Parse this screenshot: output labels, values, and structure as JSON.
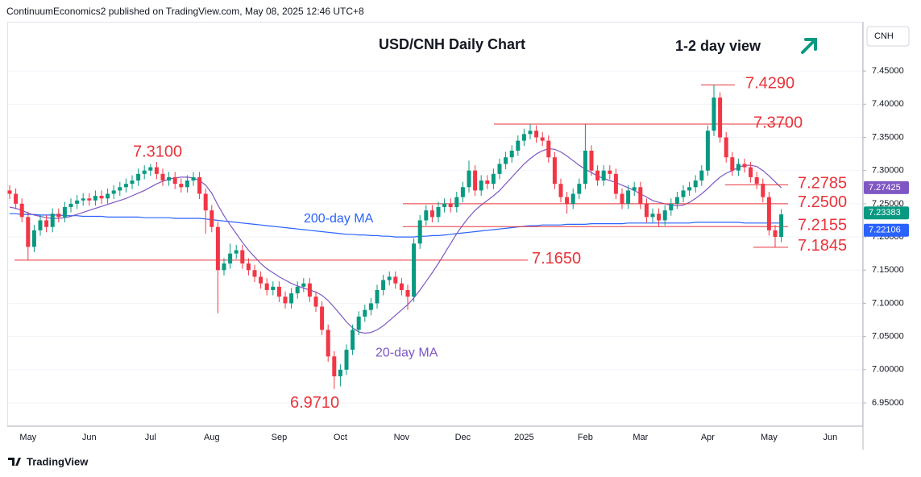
{
  "header": "ContinuumEconomics2 published on TradingView.com, May 08, 2025 12:46 UTC+8",
  "footer": "TradingView",
  "chart_data": {
    "type": "candlestick",
    "title": "USD/CNH Daily Chart",
    "subtitle": "1-2 day view",
    "currency": "CNH",
    "up_color": "#089981",
    "down_color": "#f23645",
    "categories": [
      null,
      null,
      null,
      "May",
      null,
      null,
      null,
      null,
      null,
      null,
      null,
      null,
      null,
      "Jun",
      null,
      null,
      null,
      null,
      null,
      null,
      null,
      null,
      null,
      "Jul",
      null,
      null,
      null,
      null,
      null,
      null,
      null,
      null,
      null,
      "Aug",
      null,
      null,
      null,
      null,
      null,
      null,
      null,
      null,
      null,
      null,
      "Sep",
      null,
      null,
      null,
      null,
      null,
      null,
      null,
      null,
      null,
      "Oct",
      null,
      null,
      null,
      null,
      null,
      null,
      null,
      null,
      null,
      "Nov",
      null,
      null,
      null,
      null,
      null,
      null,
      null,
      null,
      null,
      "Dec",
      null,
      null,
      null,
      null,
      null,
      null,
      null,
      null,
      null,
      "2025",
      null,
      null,
      null,
      null,
      null,
      null,
      null,
      null,
      null,
      "Feb",
      null,
      null,
      null,
      null,
      null,
      null,
      null,
      null,
      "Mar",
      null,
      null,
      null,
      null,
      null,
      null,
      null,
      null,
      null,
      null,
      "Apr",
      null,
      null,
      null,
      null,
      null,
      null,
      null,
      null,
      null,
      "May",
      null,
      null,
      null,
      null,
      null,
      null,
      null,
      null,
      null,
      "Jun"
    ],
    "open": [
      7.27,
      7.265,
      7.25,
      7.23,
      7.185,
      7.21,
      7.225,
      7.215,
      7.235,
      7.23,
      7.245,
      7.25,
      7.255,
      7.258,
      7.255,
      7.262,
      7.258,
      7.265,
      7.27,
      7.275,
      7.28,
      7.285,
      7.295,
      7.3,
      7.305,
      7.295,
      7.285,
      7.29,
      7.28,
      7.275,
      7.285,
      7.29,
      7.265,
      7.24,
      7.215,
      7.15,
      7.16,
      7.175,
      7.18,
      7.16,
      7.15,
      7.14,
      7.13,
      7.12,
      7.125,
      7.11,
      7.1,
      7.115,
      7.125,
      7.13,
      7.11,
      7.095,
      7.06,
      7.02,
      6.99,
      7.0,
      7.03,
      7.06,
      7.08,
      7.09,
      7.1,
      7.12,
      7.135,
      7.14,
      7.13,
      7.12,
      7.11,
      7.19,
      7.225,
      7.24,
      7.23,
      7.245,
      7.25,
      7.245,
      7.26,
      7.275,
      7.3,
      7.27,
      7.285,
      7.28,
      7.295,
      7.31,
      7.32,
      7.33,
      7.345,
      7.355,
      7.36,
      7.35,
      7.345,
      7.32,
      7.28,
      7.26,
      7.25,
      7.265,
      7.28,
      7.33,
      7.3,
      7.285,
      7.3,
      7.295,
      7.265,
      7.25,
      7.27,
      7.275,
      7.25,
      7.23,
      7.235,
      7.225,
      7.24,
      7.25,
      7.26,
      7.27,
      7.275,
      7.285,
      7.3,
      7.36,
      7.41,
      7.35,
      7.32,
      7.3,
      7.31,
      7.305,
      7.29,
      7.28,
      7.26,
      7.21,
      7.2,
      null,
      null,
      null,
      null,
      null,
      null,
      null,
      null
    ],
    "high": [
      7.278,
      7.273,
      7.258,
      7.238,
      7.218,
      7.233,
      7.233,
      7.243,
      7.243,
      7.253,
      7.258,
      7.263,
      7.266,
      7.266,
      7.27,
      7.27,
      7.273,
      7.278,
      7.283,
      7.288,
      7.293,
      7.303,
      7.308,
      7.31,
      7.313,
      7.303,
      7.298,
      7.298,
      7.288,
      7.293,
      7.298,
      7.298,
      7.273,
      7.248,
      7.223,
      7.168,
      7.19,
      7.188,
      7.188,
      7.168,
      7.158,
      7.148,
      7.138,
      7.133,
      7.133,
      7.118,
      7.123,
      7.133,
      7.138,
      7.138,
      7.118,
      7.103,
      7.068,
      7.028,
      7.008,
      7.038,
      7.068,
      7.088,
      7.098,
      7.108,
      7.128,
      7.143,
      7.148,
      7.148,
      7.138,
      7.128,
      7.198,
      7.233,
      7.248,
      7.248,
      7.253,
      7.258,
      7.258,
      7.268,
      7.283,
      7.315,
      7.308,
      7.293,
      7.293,
      7.303,
      7.318,
      7.328,
      7.338,
      7.353,
      7.363,
      7.37,
      7.368,
      7.358,
      7.353,
      7.328,
      7.288,
      7.268,
      7.273,
      7.288,
      7.37,
      7.338,
      7.308,
      7.308,
      7.308,
      7.303,
      7.273,
      7.278,
      7.283,
      7.283,
      7.258,
      7.243,
      7.243,
      7.248,
      7.258,
      7.268,
      7.278,
      7.283,
      7.293,
      7.308,
      7.368,
      7.429,
      7.418,
      7.358,
      7.328,
      7.318,
      7.318,
      7.313,
      7.298,
      7.288,
      7.268,
      7.218,
      7.242,
      null,
      null,
      null,
      null,
      null,
      null,
      null,
      null
    ],
    "low": [
      7.257,
      7.242,
      7.222,
      7.165,
      7.177,
      7.202,
      7.207,
      7.207,
      7.222,
      7.222,
      7.237,
      7.242,
      7.247,
      7.247,
      7.247,
      7.25,
      7.25,
      7.257,
      7.262,
      7.267,
      7.272,
      7.277,
      7.287,
      7.292,
      7.287,
      7.277,
      7.277,
      7.272,
      7.267,
      7.267,
      7.277,
      7.257,
      7.205,
      7.207,
      7.085,
      7.142,
      7.152,
      7.167,
      7.152,
      7.142,
      7.132,
      7.122,
      7.112,
      7.112,
      7.102,
      7.092,
      7.092,
      7.107,
      7.117,
      7.102,
      7.087,
      7.052,
      7.012,
      6.971,
      6.975,
      6.992,
      7.022,
      7.052,
      7.072,
      7.082,
      7.092,
      7.112,
      7.127,
      7.122,
      7.112,
      7.09,
      7.102,
      7.182,
      7.217,
      7.222,
      7.222,
      7.237,
      7.237,
      7.237,
      7.252,
      7.267,
      7.262,
      7.262,
      7.272,
      7.272,
      7.287,
      7.302,
      7.312,
      7.322,
      7.337,
      7.347,
      7.342,
      7.337,
      7.312,
      7.272,
      7.252,
      7.235,
      7.242,
      7.257,
      7.272,
      7.292,
      7.277,
      7.277,
      7.287,
      7.257,
      7.242,
      7.242,
      7.262,
      7.242,
      7.222,
      7.222,
      7.215,
      7.217,
      7.232,
      7.242,
      7.252,
      7.262,
      7.267,
      7.277,
      7.292,
      7.352,
      7.342,
      7.312,
      7.292,
      7.292,
      7.297,
      7.282,
      7.272,
      7.252,
      7.202,
      7.1845,
      7.192,
      null,
      null,
      null,
      null,
      null,
      null,
      null,
      null
    ],
    "close": [
      7.265,
      7.25,
      7.23,
      7.185,
      7.21,
      7.225,
      7.215,
      7.235,
      7.23,
      7.245,
      7.25,
      7.255,
      7.258,
      7.255,
      7.262,
      7.258,
      7.265,
      7.27,
      7.275,
      7.28,
      7.285,
      7.295,
      7.3,
      7.305,
      7.295,
      7.285,
      7.29,
      7.28,
      7.275,
      7.285,
      7.29,
      7.265,
      7.24,
      7.215,
      7.15,
      7.16,
      7.175,
      7.18,
      7.16,
      7.15,
      7.14,
      7.13,
      7.12,
      7.125,
      7.11,
      7.1,
      7.115,
      7.125,
      7.13,
      7.11,
      7.095,
      7.06,
      7.02,
      6.99,
      7.0,
      7.03,
      7.06,
      7.08,
      7.09,
      7.1,
      7.12,
      7.135,
      7.14,
      7.13,
      7.12,
      7.11,
      7.19,
      7.225,
      7.24,
      7.23,
      7.245,
      7.25,
      7.245,
      7.26,
      7.275,
      7.3,
      7.27,
      7.285,
      7.28,
      7.295,
      7.31,
      7.32,
      7.33,
      7.345,
      7.355,
      7.36,
      7.35,
      7.345,
      7.32,
      7.28,
      7.26,
      7.25,
      7.265,
      7.28,
      7.33,
      7.3,
      7.285,
      7.3,
      7.295,
      7.265,
      7.25,
      7.27,
      7.275,
      7.25,
      7.23,
      7.235,
      7.225,
      7.24,
      7.25,
      7.26,
      7.27,
      7.275,
      7.285,
      7.3,
      7.36,
      7.41,
      7.35,
      7.32,
      7.3,
      7.31,
      7.305,
      7.29,
      7.28,
      7.26,
      7.21,
      7.2,
      7.234,
      null,
      null,
      null,
      null,
      null,
      null,
      null,
      null
    ],
    "series": [
      {
        "name": "200-day MA",
        "color": "#2962ff",
        "values": [
          7.235,
          7.235,
          7.234,
          7.234,
          7.234,
          7.233,
          7.233,
          7.233,
          7.233,
          7.232,
          7.232,
          7.232,
          7.231,
          7.231,
          7.231,
          7.231,
          7.23,
          7.23,
          7.23,
          7.23,
          7.23,
          7.23,
          7.229,
          7.229,
          7.229,
          7.229,
          7.229,
          7.228,
          7.228,
          7.228,
          7.228,
          7.228,
          7.227,
          7.226,
          7.225,
          7.224,
          7.223,
          7.222,
          7.221,
          7.22,
          7.219,
          7.218,
          7.217,
          7.216,
          7.215,
          7.214,
          7.213,
          7.212,
          7.211,
          7.21,
          7.209,
          7.208,
          7.207,
          7.206,
          7.205,
          7.204,
          7.204,
          7.203,
          7.203,
          7.202,
          7.202,
          7.201,
          7.201,
          7.2,
          7.2,
          7.2,
          7.2,
          7.201,
          7.201,
          7.202,
          7.202,
          7.203,
          7.204,
          7.205,
          7.206,
          7.207,
          7.208,
          7.209,
          7.21,
          7.211,
          7.212,
          7.213,
          7.214,
          7.215,
          7.216,
          7.217,
          7.217,
          7.218,
          7.218,
          7.218,
          7.218,
          7.219,
          7.219,
          7.219,
          7.219,
          7.22,
          7.22,
          7.22,
          7.22,
          7.22,
          7.22,
          7.221,
          7.221,
          7.221,
          7.221,
          7.221,
          7.221,
          7.221,
          7.221,
          7.221,
          7.221,
          7.221,
          7.222,
          7.222,
          7.222,
          7.222,
          7.222,
          7.222,
          7.222,
          7.222,
          7.221,
          7.221,
          7.221,
          7.221,
          7.221,
          7.221,
          7.221,
          null,
          null,
          null,
          null,
          null,
          null,
          null,
          null
        ]
      },
      {
        "name": "20-day MA",
        "color": "#7e57c2",
        "values": [
          7.245,
          7.243,
          7.24,
          7.236,
          7.233,
          7.231,
          7.229,
          7.228,
          7.228,
          7.229,
          7.231,
          7.234,
          7.237,
          7.24,
          7.243,
          7.246,
          7.249,
          7.252,
          7.255,
          7.258,
          7.262,
          7.266,
          7.27,
          7.275,
          7.28,
          7.284,
          7.287,
          7.289,
          7.29,
          7.29,
          7.289,
          7.285,
          7.278,
          7.266,
          7.248,
          7.232,
          7.218,
          7.205,
          7.192,
          7.18,
          7.17,
          7.16,
          7.152,
          7.146,
          7.14,
          7.135,
          7.13,
          7.126,
          7.123,
          7.12,
          7.117,
          7.112,
          7.104,
          7.094,
          7.083,
          7.072,
          7.063,
          7.057,
          7.055,
          7.056,
          7.06,
          7.066,
          7.074,
          7.082,
          7.09,
          7.098,
          7.108,
          7.12,
          7.133,
          7.146,
          7.16,
          7.175,
          7.19,
          7.205,
          7.218,
          7.23,
          7.24,
          7.248,
          7.255,
          7.262,
          7.27,
          7.28,
          7.29,
          7.3,
          7.31,
          7.318,
          7.325,
          7.33,
          7.333,
          7.332,
          7.328,
          7.322,
          7.315,
          7.308,
          7.302,
          7.297,
          7.292,
          7.288,
          7.285,
          7.282,
          7.278,
          7.274,
          7.27,
          7.265,
          7.26,
          7.255,
          7.252,
          7.25,
          7.248,
          7.247,
          7.248,
          7.252,
          7.258,
          7.265,
          7.273,
          7.282,
          7.29,
          7.296,
          7.3,
          7.305,
          7.308,
          7.308,
          7.306,
          7.3,
          7.292,
          7.283,
          7.274,
          null,
          null,
          null,
          null,
          null,
          null,
          null,
          null
        ]
      }
    ],
    "levels": [
      {
        "value": 7.429,
        "label": "7.4290"
      },
      {
        "value": 7.37,
        "label": "7.3700"
      },
      {
        "value": 7.2785,
        "label": "7.2785"
      },
      {
        "value": 7.25,
        "label": "7.2500"
      },
      {
        "value": 7.2155,
        "label": "7.2155"
      },
      {
        "value": 7.1845,
        "label": "7.1845"
      },
      {
        "value": 7.165,
        "label": "7.1650"
      }
    ],
    "point_labels": [
      {
        "value": 7.31,
        "label": "7.3100"
      },
      {
        "value": 6.971,
        "label": "6.9710"
      }
    ],
    "price_tags": [
      {
        "value": 7.27425,
        "label": "7.27425",
        "color": "#7e57c2"
      },
      {
        "value": 7.23383,
        "label": "7.23383",
        "color": "#089981"
      },
      {
        "value": 7.22106,
        "label": "7.22106",
        "color": "#2962ff"
      }
    ],
    "ylim": [
      6.916,
      7.523
    ],
    "yticks": [
      {
        "value": 6.95,
        "label": "6.95000"
      },
      {
        "value": 7.0,
        "label": "7.00000"
      },
      {
        "value": 7.05,
        "label": "7.05000"
      },
      {
        "value": 7.1,
        "label": "7.10000"
      },
      {
        "value": 7.15,
        "label": "7.15000"
      },
      {
        "value": 7.2,
        "label": "7.20000"
      },
      {
        "value": 7.25,
        "label": "7.25000"
      },
      {
        "value": 7.3,
        "label": "7.30000"
      },
      {
        "value": 7.35,
        "label": "7.35000"
      },
      {
        "value": 7.4,
        "label": "7.40000"
      },
      {
        "value": 7.45,
        "label": "7.45000"
      }
    ]
  }
}
